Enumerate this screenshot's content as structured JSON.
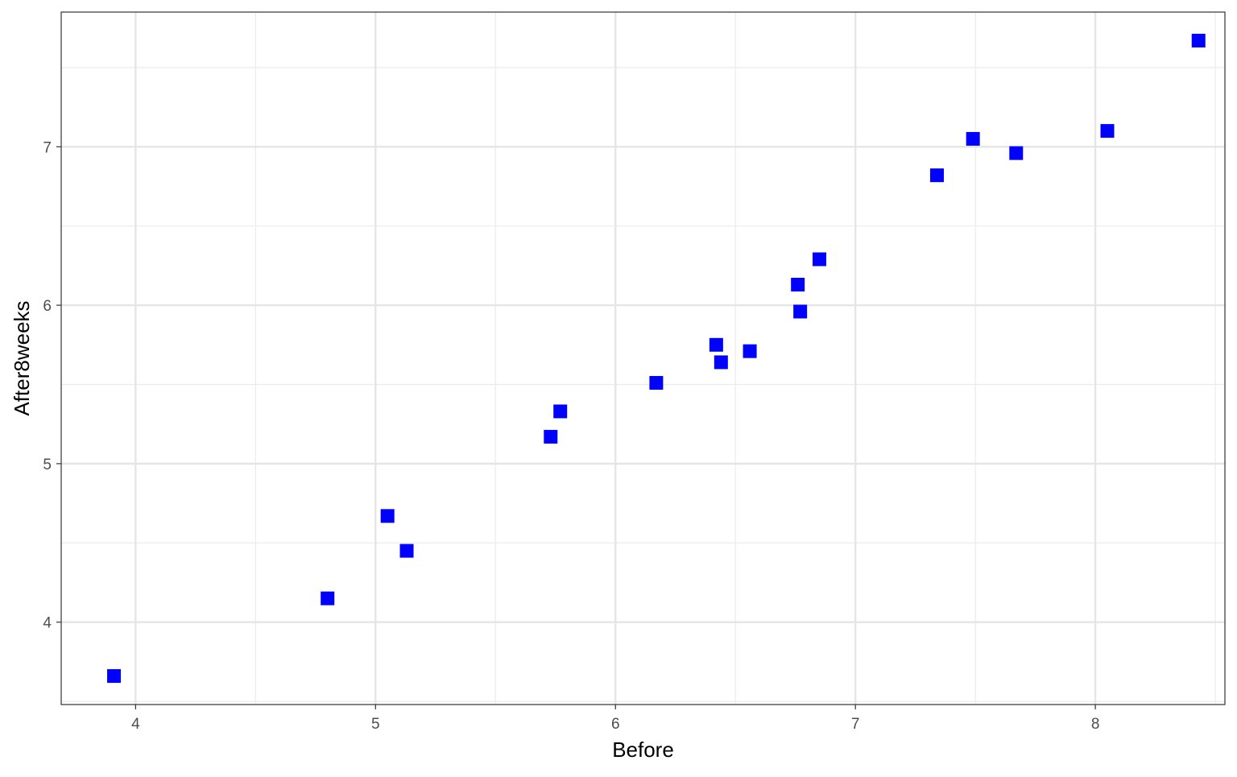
{
  "chart_data": {
    "type": "scatter",
    "title": "",
    "xlabel": "Before",
    "ylabel": "After8weeks",
    "xlim": [
      3.69,
      8.54
    ],
    "ylim": [
      3.48,
      7.85
    ],
    "x_ticks": [
      4,
      5,
      6,
      7,
      8
    ],
    "y_ticks": [
      4,
      5,
      6,
      7
    ],
    "x_minor_ticks": [
      4.5,
      5.5,
      6.5,
      7.5,
      8.5
    ],
    "y_minor_ticks": [
      3.5,
      4.5,
      5.5,
      6.5,
      7.5
    ],
    "grid": true,
    "legend": "none",
    "marker": "square",
    "marker_color": "#0000FF",
    "points": [
      {
        "x": 3.91,
        "y": 3.66
      },
      {
        "x": 4.8,
        "y": 4.15
      },
      {
        "x": 5.05,
        "y": 4.67
      },
      {
        "x": 5.13,
        "y": 4.45
      },
      {
        "x": 5.73,
        "y": 5.17
      },
      {
        "x": 5.77,
        "y": 5.33
      },
      {
        "x": 6.17,
        "y": 5.51
      },
      {
        "x": 6.42,
        "y": 5.75
      },
      {
        "x": 6.44,
        "y": 5.64
      },
      {
        "x": 6.56,
        "y": 5.71
      },
      {
        "x": 6.76,
        "y": 6.13
      },
      {
        "x": 6.77,
        "y": 5.96
      },
      {
        "x": 6.85,
        "y": 6.29
      },
      {
        "x": 7.34,
        "y": 6.82
      },
      {
        "x": 7.49,
        "y": 7.05
      },
      {
        "x": 7.67,
        "y": 6.96
      },
      {
        "x": 8.05,
        "y": 7.1
      },
      {
        "x": 8.43,
        "y": 7.67
      }
    ]
  }
}
